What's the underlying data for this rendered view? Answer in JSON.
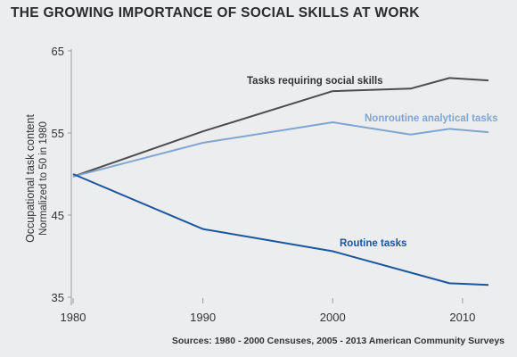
{
  "title": "THE GROWING IMPORTANCE OF SOCIAL SKILLS AT WORK",
  "source": "Sources: 1980 - 2000 Censuses, 2005 - 2013 American Community Surveys",
  "chart_data": {
    "type": "line",
    "title": "THE GROWING IMPORTANCE OF SOCIAL SKILLS AT WORK",
    "ylabel": "Occupational task content",
    "ylabel_sub": "Normalized to 50 in 1980",
    "xlabel": "",
    "xlim": [
      1980,
      2012
    ],
    "ylim": [
      35,
      65
    ],
    "x_ticks": [
      1980,
      1990,
      2000,
      2010
    ],
    "y_ticks": [
      35,
      45,
      55,
      65
    ],
    "grid": false,
    "legend": "inline labels",
    "series": [
      {
        "name": "Tasks requiring social skills",
        "color": "#4d4d4f",
        "x": [
          1980,
          1990,
          2000,
          2006,
          2009,
          2012
        ],
        "values": [
          49.7,
          55.2,
          60.1,
          60.4,
          61.7,
          61.4
        ]
      },
      {
        "name": "Nonroutine analytical tasks",
        "color": "#7fa6d3",
        "x": [
          1980,
          1990,
          2000,
          2006,
          2009,
          2012
        ],
        "values": [
          49.7,
          53.8,
          56.3,
          54.8,
          55.5,
          55.1
        ]
      },
      {
        "name": "Routine tasks",
        "color": "#1a56a0",
        "x": [
          1980,
          1990,
          2000,
          2009,
          2012
        ],
        "values": [
          50.0,
          43.3,
          40.6,
          36.7,
          36.5
        ]
      }
    ]
  }
}
